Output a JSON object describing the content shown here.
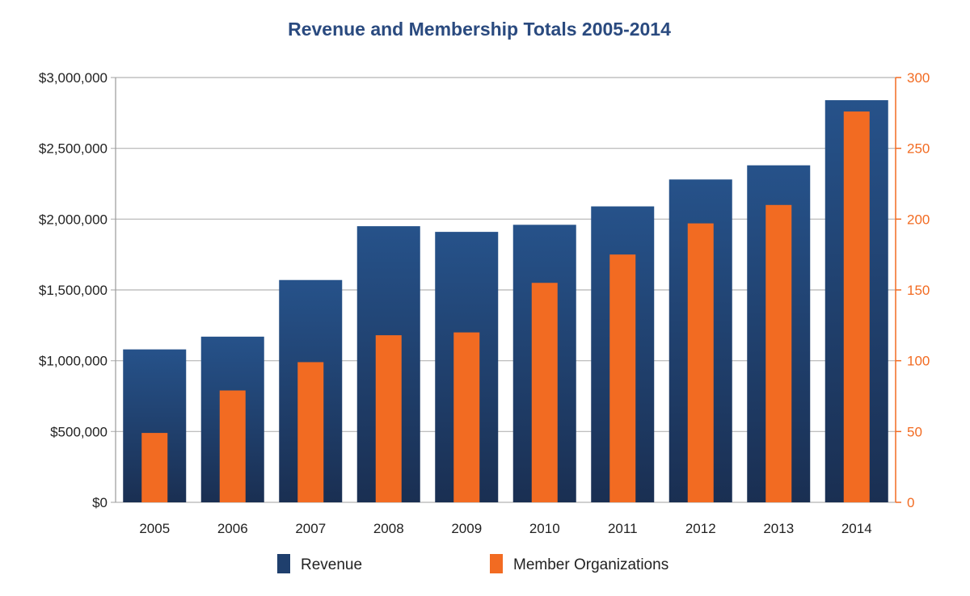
{
  "chart_data": {
    "type": "bar",
    "title": "Revenue and Membership Totals 2005-2014",
    "categories": [
      "2005",
      "2006",
      "2007",
      "2008",
      "2009",
      "2010",
      "2011",
      "2012",
      "2013",
      "2014"
    ],
    "series": [
      {
        "name": "Revenue",
        "axis": "left",
        "values": [
          1080000,
          1170000,
          1570000,
          1950000,
          1910000,
          1960000,
          2090000,
          2280000,
          2380000,
          2840000
        ]
      },
      {
        "name": "Member Organizations",
        "axis": "right",
        "values": [
          49,
          79,
          99,
          118,
          120,
          155,
          175,
          197,
          210,
          276
        ]
      }
    ],
    "y_left": {
      "ylim": [
        0,
        3000000
      ],
      "ticks": [
        0,
        500000,
        1000000,
        1500000,
        2000000,
        2500000,
        3000000
      ],
      "tick_labels": [
        "$0",
        "$500,000",
        "$1,000,000",
        "$1,500,000",
        "$2,000,000",
        "$2,500,000",
        "$3,000,000"
      ]
    },
    "y_right": {
      "ylim": [
        0,
        300
      ],
      "ticks": [
        0,
        50,
        100,
        150,
        200,
        250,
        300
      ],
      "tick_labels": [
        "0",
        "50",
        "100",
        "150",
        "200",
        "250",
        "300"
      ]
    },
    "grid": true,
    "legend": {
      "position": "bottom",
      "items": [
        "Revenue",
        "Member Organizations"
      ]
    }
  },
  "colors": {
    "title": "#2a4a7f",
    "revenue": "#1f3f6d",
    "revenue_top": "#26528a",
    "revenue_bottom": "#1a2f52",
    "members": "#f26b22",
    "right_axis": "#f26b22",
    "grid": "#b5b5b5",
    "axis_text": "#222222"
  }
}
